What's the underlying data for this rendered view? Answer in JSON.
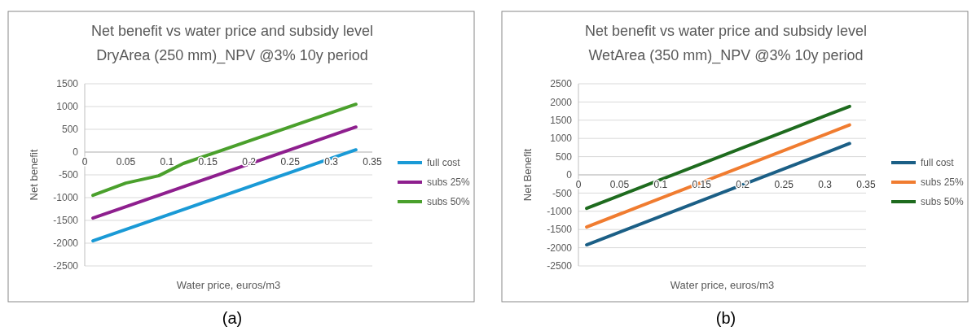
{
  "chart_data": [
    {
      "type": "line",
      "title": "Net benefit vs water price and subsidy level",
      "subtitle": "DryArea (250 mm)_NPV @3% 10y period",
      "xlabel": "Water price, euros/m3",
      "ylabel": "Net benefit",
      "xlim": [
        0,
        0.35
      ],
      "xticks": [
        0,
        0.05,
        0.1,
        0.15,
        0.2,
        0.25,
        0.3,
        0.35
      ],
      "ylim": [
        -2500,
        1500
      ],
      "yticks": [
        -2500,
        -2000,
        -1500,
        -1000,
        -500,
        0,
        500,
        1000,
        1500
      ],
      "grid": "y",
      "legend": "right",
      "marker": "none",
      "line_style": "solid",
      "annotations": [
        "(a)"
      ],
      "series": [
        {
          "name": "full cost",
          "color": "#1a9ad6",
          "x": [
            0.01,
            0.33
          ],
          "values": [
            -1950,
            50
          ]
        },
        {
          "name": "subs 25%",
          "color": "#8e1f8e",
          "x": [
            0.01,
            0.33
          ],
          "values": [
            -1450,
            550
          ]
        },
        {
          "name": "subs 50%",
          "color": "#4aa02c",
          "x": [
            0.01,
            0.05,
            0.09,
            0.12,
            0.33
          ],
          "values": [
            -950,
            -680,
            -520,
            -250,
            1050
          ]
        }
      ]
    },
    {
      "type": "line",
      "title": "Net benefit vs water price and subsidy level",
      "subtitle": "WetArea (350 mm)_NPV @3% 10y period",
      "xlabel": "Water price, euros/m3",
      "ylabel": "Net Benefit",
      "xlim": [
        0,
        0.35
      ],
      "xticks": [
        0,
        0.05,
        0.1,
        0.15,
        0.2,
        0.25,
        0.3,
        0.35
      ],
      "ylim": [
        -2500,
        2500
      ],
      "yticks": [
        -2500,
        -2000,
        -1500,
        -1000,
        -500,
        0,
        500,
        1000,
        1500,
        2000,
        2500
      ],
      "grid": "y",
      "legend": "right",
      "marker": "none",
      "line_style": "solid",
      "annotations": [
        "(b)"
      ],
      "series": [
        {
          "name": "full cost",
          "color": "#1b5f86",
          "x": [
            0.01,
            0.33
          ],
          "values": [
            -1920,
            860
          ]
        },
        {
          "name": "subs 25%",
          "color": "#f07c30",
          "x": [
            0.01,
            0.33
          ],
          "values": [
            -1430,
            1370
          ]
        },
        {
          "name": "subs 50%",
          "color": "#1e6b1e",
          "x": [
            0.01,
            0.33
          ],
          "values": [
            -920,
            1880
          ]
        }
      ]
    }
  ]
}
